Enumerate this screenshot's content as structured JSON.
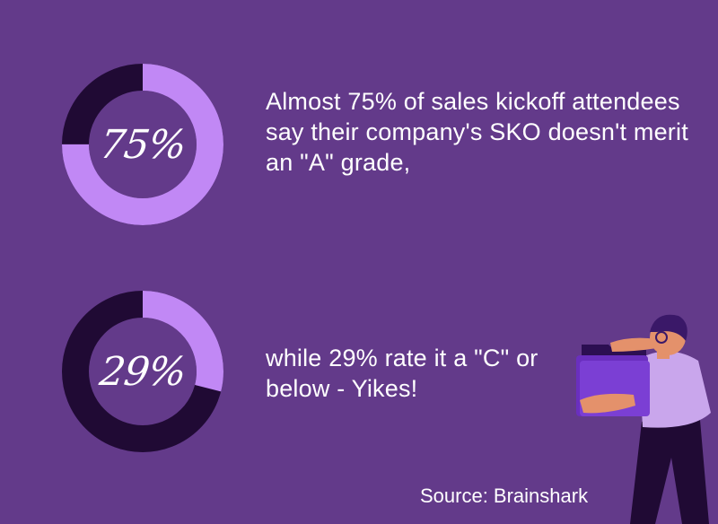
{
  "chart_data": [
    {
      "type": "pie",
      "style": "donut",
      "value": 75,
      "label": "75%",
      "colors": {
        "value": "#c188f5",
        "remainder": "#200a34"
      }
    },
    {
      "type": "pie",
      "style": "donut",
      "value": 29,
      "label": "29%",
      "colors": {
        "value": "#c188f5",
        "remainder": "#200a34"
      }
    }
  ],
  "stat1": {
    "text": "Almost 75% of sales kickoff attendees say their company's SKO doesn't merit an \"A\" grade,"
  },
  "stat2": {
    "text": "while 29% rate it a \"C\" or below - Yikes!"
  },
  "source": "Source: Brainshark",
  "colors": {
    "background": "#633a8a",
    "accent": "#c188f5",
    "dark": "#200a34"
  }
}
